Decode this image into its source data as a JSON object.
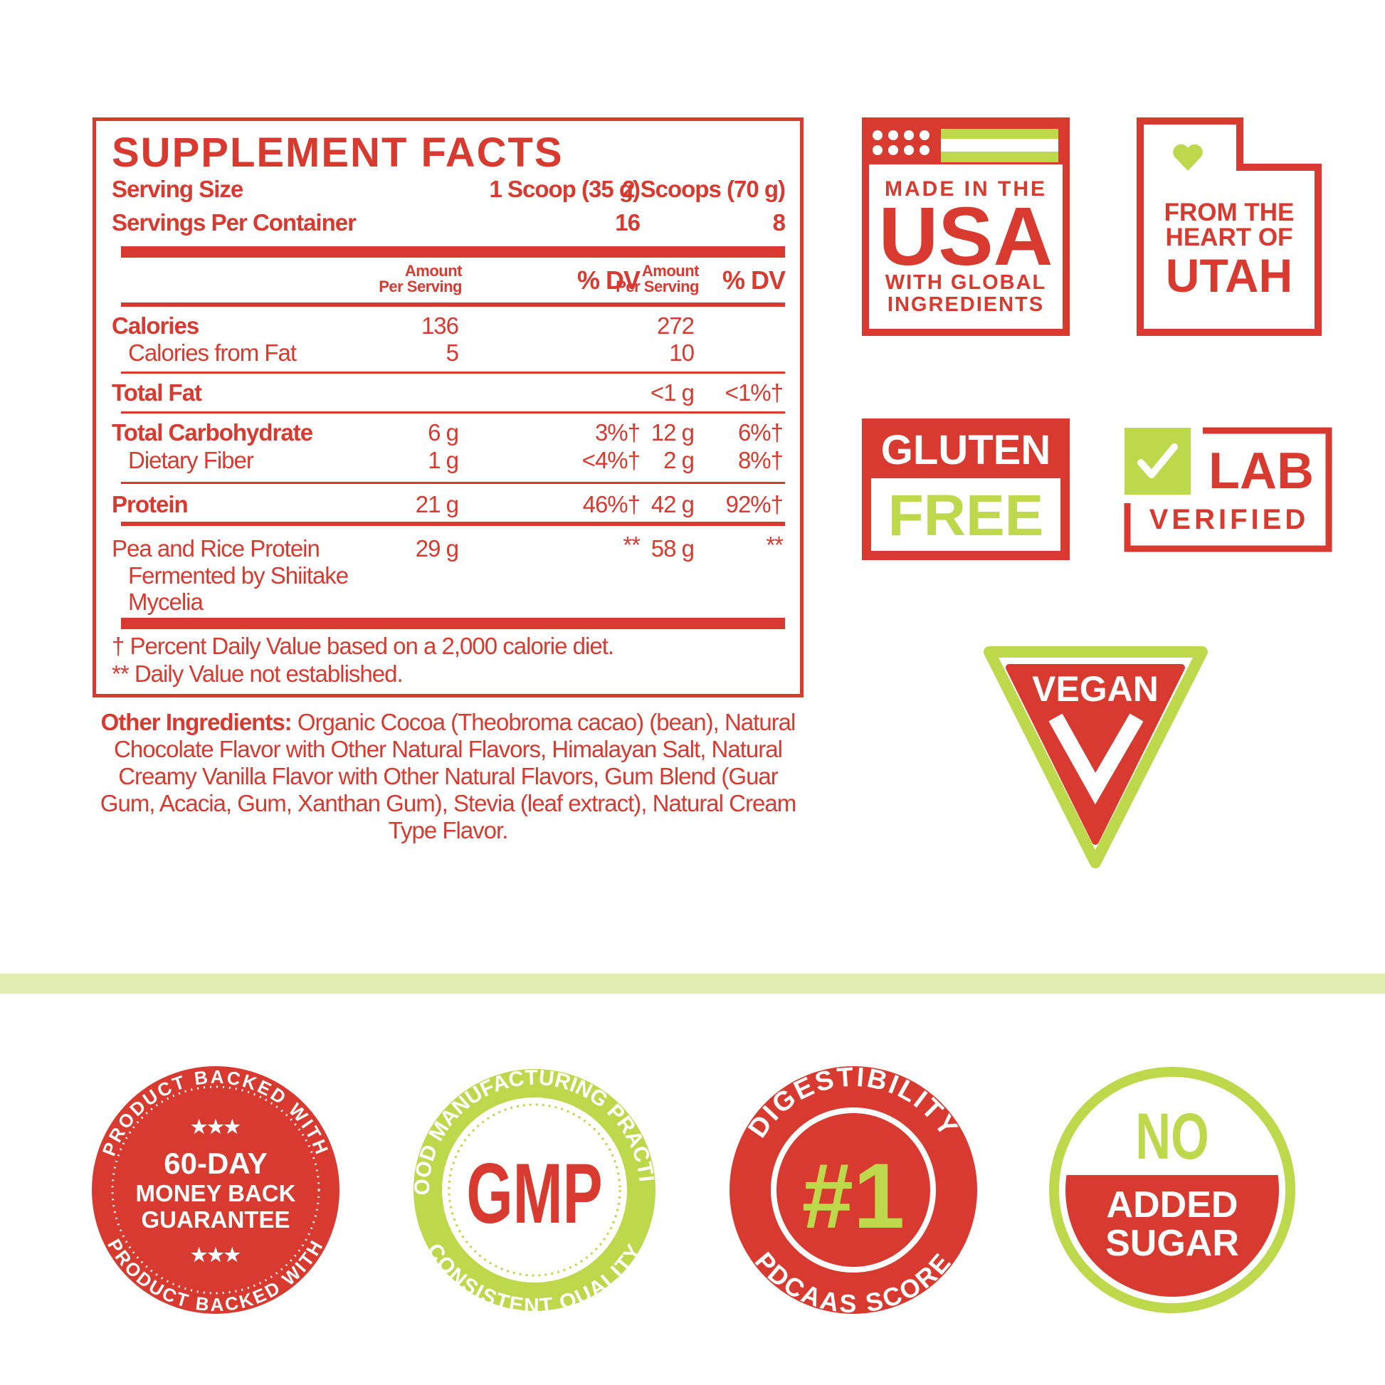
{
  "colors": {
    "red": "#d93a30",
    "green": "#bdd84a",
    "band": "#e2edb2"
  },
  "facts": {
    "title": "SUPPLEMENT FACTS",
    "serving_size_label": "Serving Size",
    "serving_size_1": "1 Scoop (35 g)",
    "serving_size_2": "2 Scoops (70 g)",
    "servings_per_container_label": "Servings Per Container",
    "servings_per_container_1": "16",
    "servings_per_container_2": "8",
    "header": {
      "amount_line1": "Amount",
      "amount_line2": "Per Serving",
      "dv": "% DV"
    },
    "rows": [
      {
        "label": "Calories",
        "amount1": "136",
        "dv1": "",
        "amount2": "272",
        "dv2": ""
      },
      {
        "label": "Calories from Fat",
        "amount1": "5",
        "dv1": "",
        "amount2": "10",
        "dv2": ""
      },
      {
        "label": "Total Fat",
        "amount1": "",
        "dv1": "",
        "amount2": "<1 g",
        "dv2": "<1%†"
      },
      {
        "label": "Total Carbohydrate",
        "amount1": "6 g",
        "dv1": "3%†",
        "amount2": "12 g",
        "dv2": "6%†"
      },
      {
        "label": "Dietary Fiber",
        "amount1": "1 g",
        "dv1": "<4%†",
        "amount2": "2 g",
        "dv2": "8%†"
      },
      {
        "label": "Protein",
        "amount1": "21 g",
        "dv1": "46%†",
        "amount2": "42 g",
        "dv2": "92%†"
      },
      {
        "label_lines": [
          "Pea and Rice Protein",
          "Fermented by Shiitake",
          "Mycelia"
        ],
        "amount1": "29 g",
        "dv1": "**",
        "amount2": "58 g",
        "dv2": "**"
      }
    ],
    "footnote_1": "†  Percent Daily Value based on a 2,000 calorie diet.",
    "footnote_2": "** Daily Value not established."
  },
  "other_ingredients": {
    "label": "Other Ingredients:",
    "text": " Organic Cocoa (Theobroma cacao) (bean), Natural Chocolate Flavor with Other Natural Flavors, Himalayan Salt, Natural Creamy Vanilla Flavor with Other Natural Flavors, Gum Blend (Guar Gum, Acacia, Gum, Xanthan Gum), Stevia (leaf extract), Natural Cream Type Flavor."
  },
  "badges": {
    "usa": {
      "line1": "MADE IN THE",
      "big": "USA",
      "line3": "WITH GLOBAL",
      "line4": "INGREDIENTS",
      "icon": "flag-icon"
    },
    "utah": {
      "line1": "FROM THE",
      "line2": "HEART OF",
      "big": "UTAH",
      "icon": "heart-icon"
    },
    "gluten": {
      "line1": "GLUTEN",
      "line2": "FREE"
    },
    "lab": {
      "line1": "LAB",
      "line2": "VERIFIED",
      "icon": "checkmark-icon"
    },
    "vegan": {
      "label": "VEGAN",
      "icon": "v-icon"
    },
    "guarantee": {
      "arc_top": "PRODUCT BACKED WITH",
      "arc_bottom": "PRODUCT BACKED WITH",
      "stars": "★★★",
      "line1": "60-DAY",
      "line2": "MONEY BACK",
      "line3": "GUARANTEE"
    },
    "gmp": {
      "arc_top": "GOOD MANUFACTURING PRACTICE",
      "arc_bottom": "CONSISTENT QUALITY",
      "big": "GMP"
    },
    "pdcaas": {
      "arc_top": "DIGESTIBILITY",
      "arc_bottom": "PDCAAS SCORE",
      "big": "#1"
    },
    "sugar": {
      "line1": "NO",
      "line2": "ADDED",
      "line3": "SUGAR"
    }
  }
}
